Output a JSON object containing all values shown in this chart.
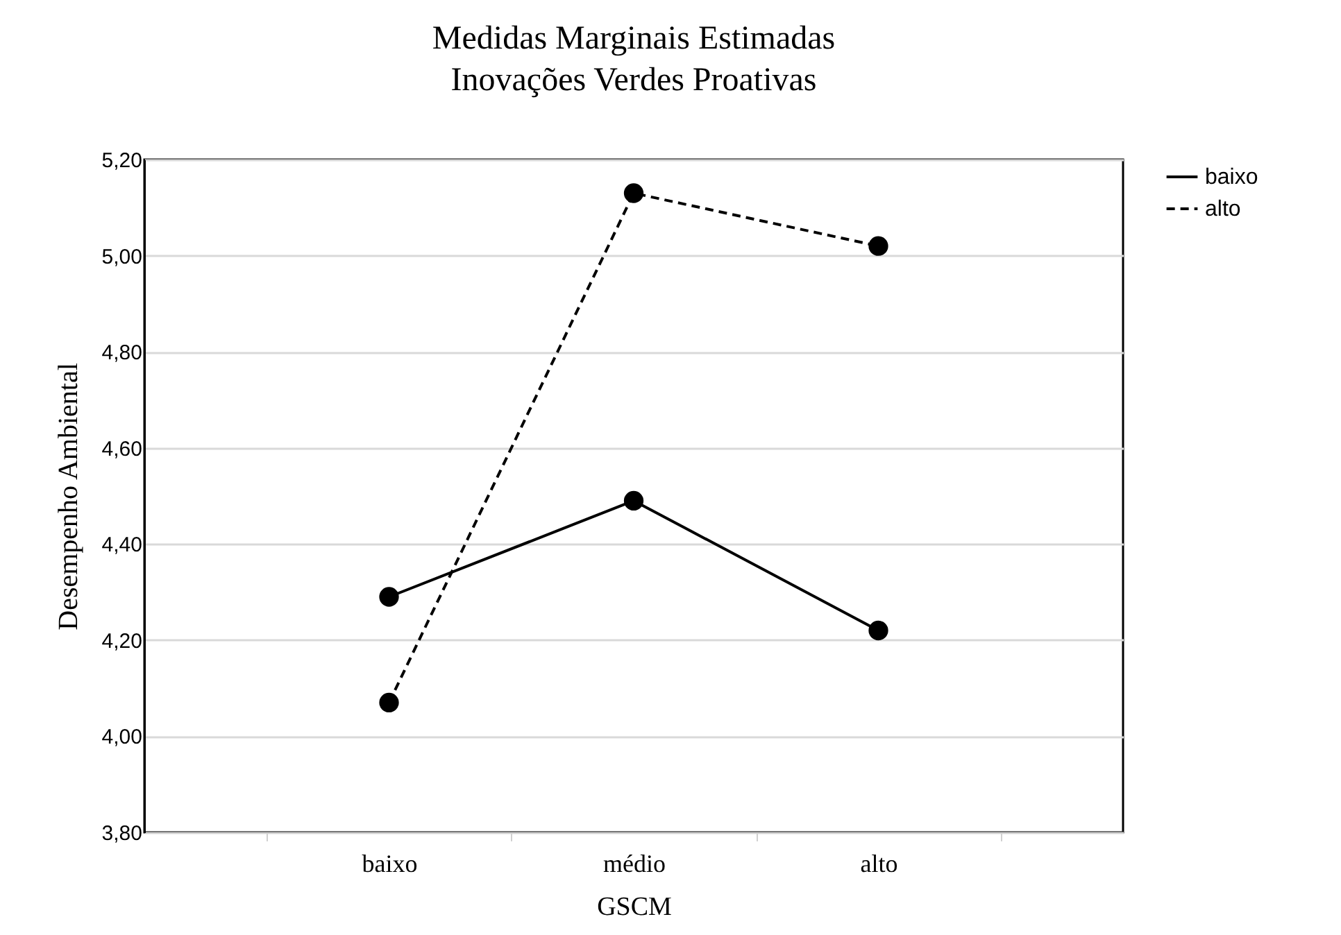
{
  "chart_data": {
    "type": "line",
    "title": [
      "Medidas Marginais Estimadas",
      "Inovações Verdes Proativas"
    ],
    "xlabel": "GSCM",
    "ylabel": "Desempenho Ambiental",
    "categories": [
      "baixo",
      "médio",
      "alto"
    ],
    "series": [
      {
        "name": "baixo",
        "color": "#000000",
        "line_style": "solid",
        "values": [
          4.29,
          4.49,
          4.22
        ]
      },
      {
        "name": "alto",
        "color": "#000000",
        "line_style": "dashed",
        "values": [
          4.07,
          5.13,
          5.02
        ]
      }
    ],
    "ylim": [
      3.8,
      5.2
    ],
    "yticks": [
      {
        "value": 3.8,
        "label": "3,80"
      },
      {
        "value": 4.0,
        "label": "4,00"
      },
      {
        "value": 4.2,
        "label": "4,20"
      },
      {
        "value": 4.4,
        "label": "4,40"
      },
      {
        "value": 4.6,
        "label": "4,60"
      },
      {
        "value": 4.8,
        "label": "4,80"
      },
      {
        "value": 5.0,
        "label": "5,00"
      },
      {
        "value": 5.2,
        "label": "5,20"
      }
    ],
    "grid": "y",
    "legend": "right",
    "marker": "circle"
  }
}
